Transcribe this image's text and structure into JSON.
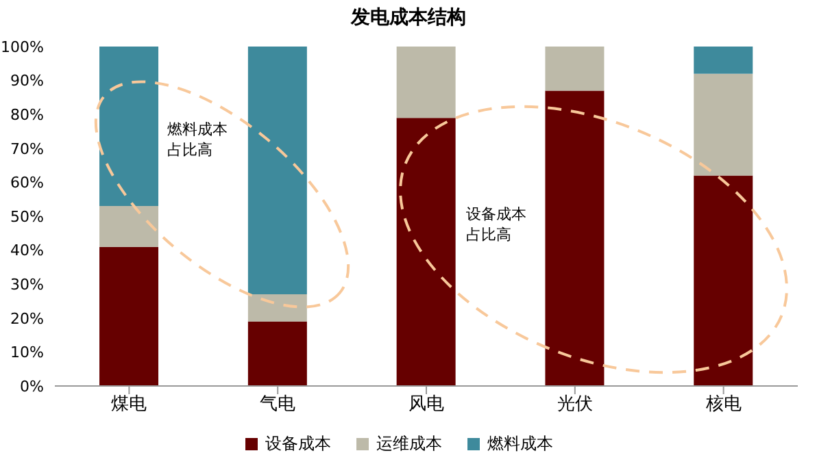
{
  "chart_data": {
    "type": "bar",
    "title": "发电成本结构",
    "categories": [
      "煤电",
      "气电",
      "风电",
      "光伏",
      "核电"
    ],
    "stacked": true,
    "series": [
      {
        "name": "设备成本",
        "color": "#660000",
        "values": [
          41,
          19,
          79,
          87,
          62
        ]
      },
      {
        "name": "运维成本",
        "color": "#bdbaa9",
        "values": [
          12,
          8,
          21,
          13,
          30
        ]
      },
      {
        "name": "燃料成本",
        "color": "#3e8a9c",
        "values": [
          47,
          73,
          0,
          0,
          8
        ]
      }
    ],
    "ylim": [
      0,
      100
    ],
    "yticks": [
      {
        "value": 0,
        "label": "0%"
      },
      {
        "value": 10,
        "label": "10%"
      },
      {
        "value": 20,
        "label": "20%"
      },
      {
        "value": 30,
        "label": "30%"
      },
      {
        "value": 40,
        "label": "40%"
      },
      {
        "value": 50,
        "label": "50%"
      },
      {
        "value": 60,
        "label": "60%"
      },
      {
        "value": 70,
        "label": "70%"
      },
      {
        "value": 80,
        "label": "80%"
      },
      {
        "value": 90,
        "label": "90%"
      },
      {
        "value": 100,
        "label": "100%"
      }
    ],
    "legend": "bottom",
    "annotations": [
      "燃料成本占比高",
      "设备成本占比高"
    ]
  }
}
